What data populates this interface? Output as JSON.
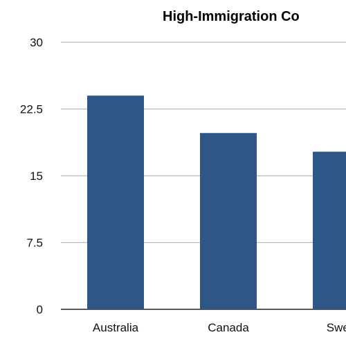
{
  "chart_data": {
    "type": "bar",
    "title": "High-Immigration Co",
    "categories": [
      "Australia",
      "Canada",
      "Swed"
    ],
    "values": [
      24.0,
      19.8,
      17.7
    ],
    "ylim": [
      0,
      30
    ],
    "yticks": [
      "0",
      "7.5",
      "15",
      "22.5",
      "30"
    ],
    "xlabel": "",
    "ylabel": "",
    "grid": true,
    "bar_color": "#2e5686"
  }
}
